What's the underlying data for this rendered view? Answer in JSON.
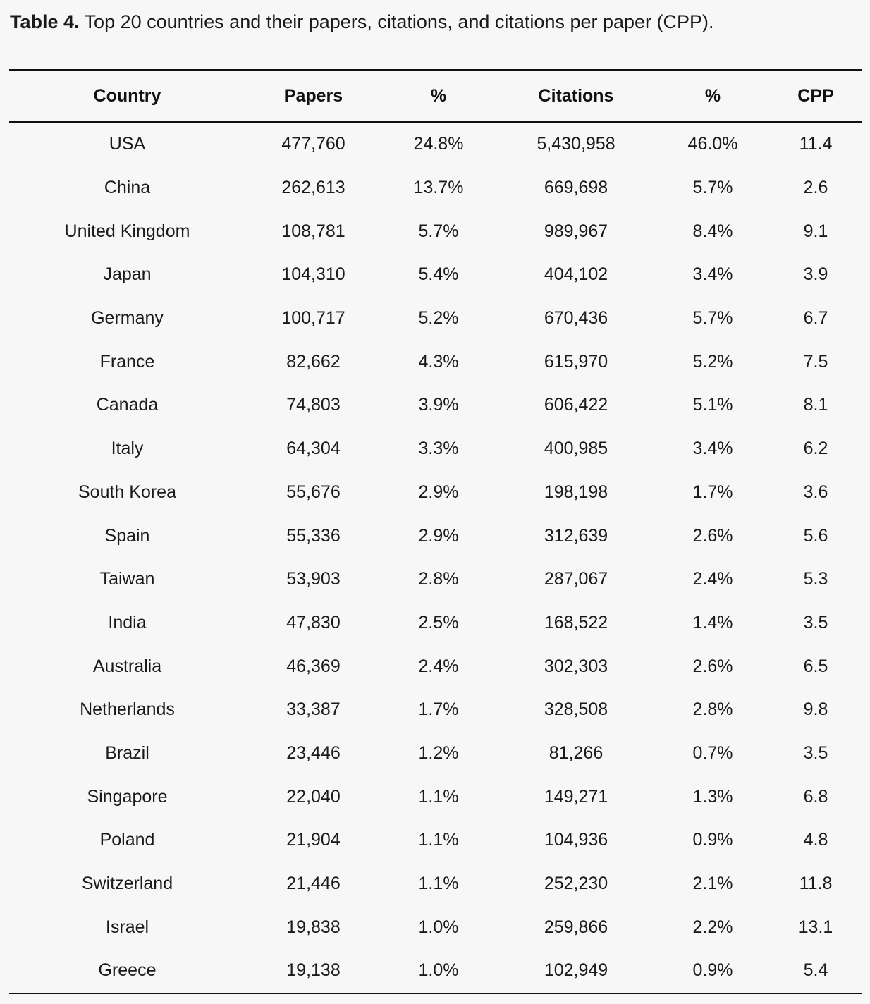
{
  "caption": {
    "lead": "Table 4.",
    "text": " Top 20 countries and their papers, citations, and citations per paper (CPP)."
  },
  "chart_data": {
    "type": "table",
    "columns": [
      "Country",
      "Papers",
      "%",
      "Citations",
      "%",
      "CPP"
    ],
    "rows": [
      [
        "USA",
        "477,760",
        "24.8%",
        "5,430,958",
        "46.0%",
        "11.4"
      ],
      [
        "China",
        "262,613",
        "13.7%",
        "669,698",
        "5.7%",
        "2.6"
      ],
      [
        "United Kingdom",
        "108,781",
        "5.7%",
        "989,967",
        "8.4%",
        "9.1"
      ],
      [
        "Japan",
        "104,310",
        "5.4%",
        "404,102",
        "3.4%",
        "3.9"
      ],
      [
        "Germany",
        "100,717",
        "5.2%",
        "670,436",
        "5.7%",
        "6.7"
      ],
      [
        "France",
        "82,662",
        "4.3%",
        "615,970",
        "5.2%",
        "7.5"
      ],
      [
        "Canada",
        "74,803",
        "3.9%",
        "606,422",
        "5.1%",
        "8.1"
      ],
      [
        "Italy",
        "64,304",
        "3.3%",
        "400,985",
        "3.4%",
        "6.2"
      ],
      [
        "South Korea",
        "55,676",
        "2.9%",
        "198,198",
        "1.7%",
        "3.6"
      ],
      [
        "Spain",
        "55,336",
        "2.9%",
        "312,639",
        "2.6%",
        "5.6"
      ],
      [
        "Taiwan",
        "53,903",
        "2.8%",
        "287,067",
        "2.4%",
        "5.3"
      ],
      [
        "India",
        "47,830",
        "2.5%",
        "168,522",
        "1.4%",
        "3.5"
      ],
      [
        "Australia",
        "46,369",
        "2.4%",
        "302,303",
        "2.6%",
        "6.5"
      ],
      [
        "Netherlands",
        "33,387",
        "1.7%",
        "328,508",
        "2.8%",
        "9.8"
      ],
      [
        "Brazil",
        "23,446",
        "1.2%",
        "81,266",
        "0.7%",
        "3.5"
      ],
      [
        "Singapore",
        "22,040",
        "1.1%",
        "149,271",
        "1.3%",
        "6.8"
      ],
      [
        "Poland",
        "21,904",
        "1.1%",
        "104,936",
        "0.9%",
        "4.8"
      ],
      [
        "Switzerland",
        "21,446",
        "1.1%",
        "252,230",
        "2.1%",
        "11.8"
      ],
      [
        "Israel",
        "19,838",
        "1.0%",
        "259,866",
        "2.2%",
        "13.1"
      ],
      [
        "Greece",
        "19,138",
        "1.0%",
        "102,949",
        "0.9%",
        "5.4"
      ]
    ]
  }
}
